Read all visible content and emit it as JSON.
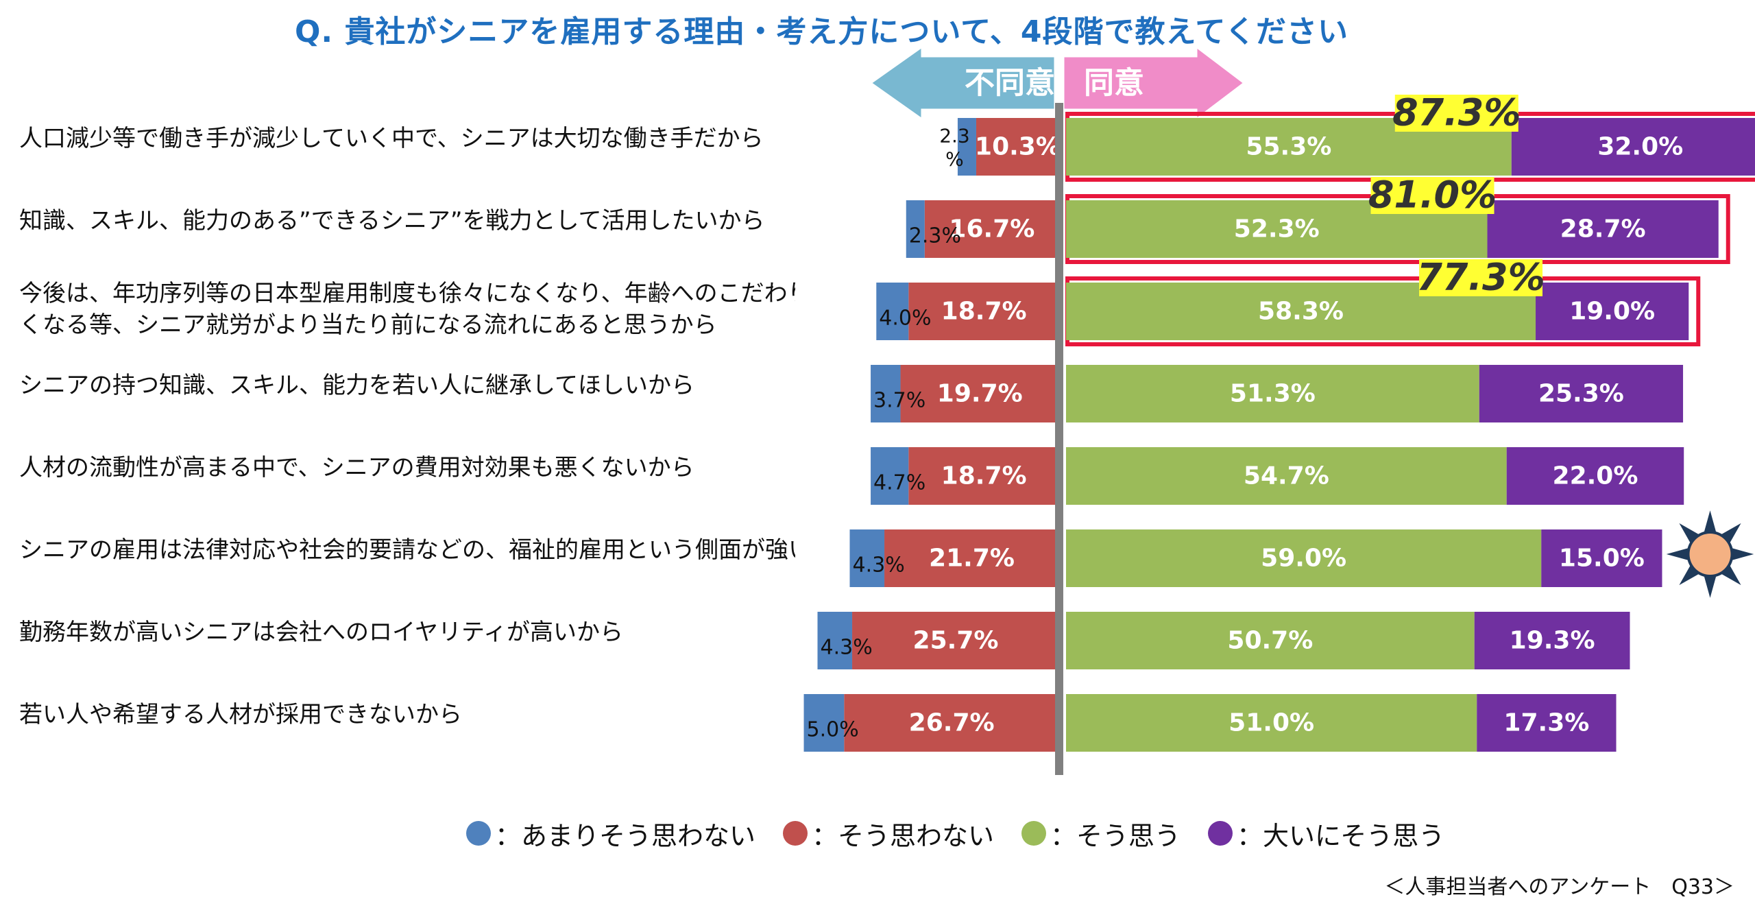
{
  "title": "Q. 貴社がシニアを雇用する理由・考え方について、4段階で教えてください",
  "disagree_header": "不同意",
  "agree_header": "同意",
  "source": "＜人事担当者へのアンケート　Q33＞",
  "colors": {
    "series0": "#4f81bd",
    "series1": "#c0504d",
    "series2": "#9bbb59",
    "series3": "#7030a0",
    "highlight": "#e8173c",
    "total_bg": "#ffff33",
    "disagree_arrow": "#79b8d1",
    "agree_arrow": "#f08cc8",
    "axis": "#808080",
    "title": "#1f6fbf"
  },
  "legend": [
    {
      "label": "：あまりそう思わない",
      "color": "#4f81bd"
    },
    {
      "label": "：そう思わない",
      "color": "#c0504d"
    },
    {
      "label": "：そう思う",
      "color": "#9bbb59"
    },
    {
      "label": "：大いにそう思う",
      "color": "#7030a0"
    }
  ],
  "chart_data": {
    "type": "bar",
    "orientation": "horizontal-diverging-stacked",
    "title": "Q. 貴社がシニアを雇用する理由・考え方について、4段階で教えてください",
    "categories": [
      "人口減少等で働き手が減少していく中で、シニアは大切な働き手だから",
      "知識、スキル、能力のある”できるシニア”を戦力として活用したいから",
      "今後は、年功序列等の日本型雇用制度も徐々になくなり、年齢へのこだわりが低くなる等、シニア就労がより当たり前になる流れにあると思うから",
      "シニアの持つ知識、スキル、能力を若い人に継承してほしいから",
      "人材の流動性が高まる中で、シニアの費用対効果も悪くないから",
      "シニアの雇用は法律対応や社会的要請などの、福祉的雇用という側面が強い",
      "勤務年数が高いシニアは会社へのロイヤリティが高いから",
      "若い人や希望する人材が採用できないから"
    ],
    "series": [
      {
        "name": "あまりそう思わない",
        "values": [
          2.3,
          2.3,
          4.0,
          3.7,
          4.7,
          4.3,
          4.3,
          5.0
        ],
        "labels": [
          "2.3\n%",
          "2.3%",
          "4.0%",
          "3.7%",
          "4.7%",
          "4.3%",
          "4.3%",
          "5.0%"
        ]
      },
      {
        "name": "そう思わない",
        "values": [
          10.3,
          16.7,
          18.7,
          19.7,
          18.7,
          21.7,
          25.7,
          26.7
        ],
        "labels": [
          "10.3%",
          "16.7%",
          "18.7%",
          "19.7%",
          "18.7%",
          "21.7%",
          "25.7%",
          "26.7%"
        ]
      },
      {
        "name": "そう思う",
        "values": [
          55.3,
          52.3,
          58.3,
          51.3,
          54.7,
          59.0,
          50.7,
          51.0
        ],
        "labels": [
          "55.3%",
          "52.3%",
          "58.3%",
          "51.3%",
          "54.7%",
          "59.0%",
          "50.7%",
          "51.0%"
        ]
      },
      {
        "name": "大いにそう思う",
        "values": [
          32.0,
          28.7,
          19.0,
          25.3,
          22.0,
          15.0,
          19.3,
          17.3
        ],
        "labels": [
          "32.0%",
          "28.7%",
          "19.0%",
          "25.3%",
          "22.0%",
          "15.0%",
          "19.3%",
          "17.3%"
        ]
      }
    ],
    "agree_totals": [
      {
        "index": 0,
        "label": "87.3%"
      },
      {
        "index": 1,
        "label": "81.0%"
      },
      {
        "index": 2,
        "label": "77.3%"
      }
    ],
    "sun_markers": [
      0,
      5
    ],
    "xlabel": "",
    "ylabel": "",
    "legend_position": "bottom"
  }
}
